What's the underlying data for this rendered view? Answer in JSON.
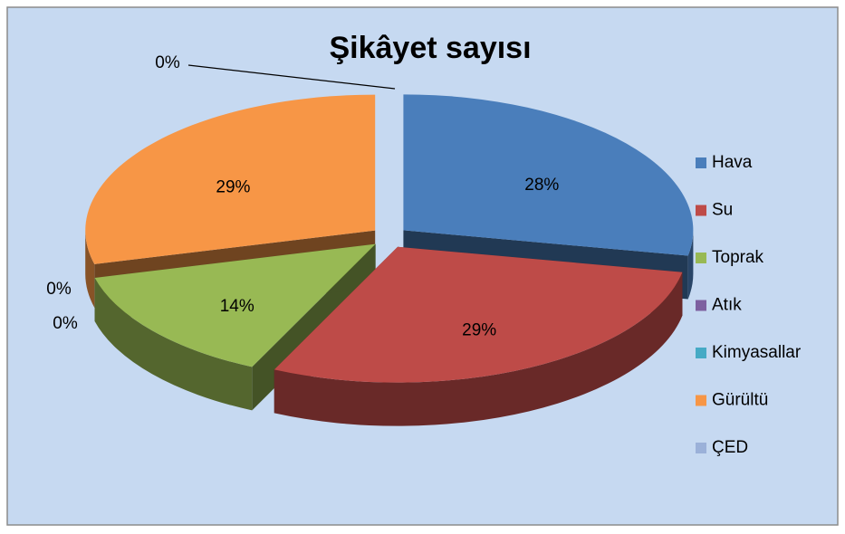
{
  "chart_data": {
    "type": "pie",
    "title": "Şikâyet sayısı",
    "categories": [
      "Hava",
      "Su",
      "Toprak",
      "Atık",
      "Kimyasallar",
      "Gürültü",
      "ÇED"
    ],
    "values": [
      28,
      29,
      14,
      0,
      0,
      29,
      0
    ],
    "value_labels": [
      "28%",
      "29%",
      "14%",
      "0%",
      "0%",
      "29%",
      "0%"
    ],
    "colors": [
      "#4a7ebb",
      "#be4b48",
      "#98b954",
      "#7d60a0",
      "#46aac5",
      "#f79646",
      "#9bb1d9"
    ],
    "legend": "right"
  }
}
